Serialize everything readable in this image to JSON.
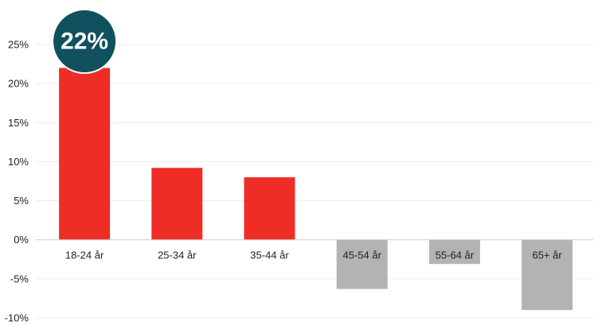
{
  "chart_data": {
    "type": "bar",
    "categories": [
      "18-24 år",
      "25-34 år",
      "35-44 år",
      "45-54 år",
      "55-64 år",
      "65+ år"
    ],
    "values": [
      22.0,
      9.2,
      8.0,
      -6.3,
      -3.1,
      -9.0
    ],
    "ylim": [
      -10,
      25
    ],
    "yticks": [
      25,
      20,
      15,
      10,
      5,
      0,
      -5,
      -10
    ],
    "ytick_labels": [
      "25%",
      "20%",
      "15%",
      "10%",
      "5%",
      "0%",
      "-5%",
      "-10%"
    ],
    "grid": true,
    "highlight": {
      "category": "18-24 år",
      "label": "22%"
    },
    "colors": {
      "positive": "#ee2e26",
      "negative": "#b3b3b3",
      "badge": "#11505e",
      "grid": "#ececec",
      "axis": "#cccccc"
    }
  }
}
